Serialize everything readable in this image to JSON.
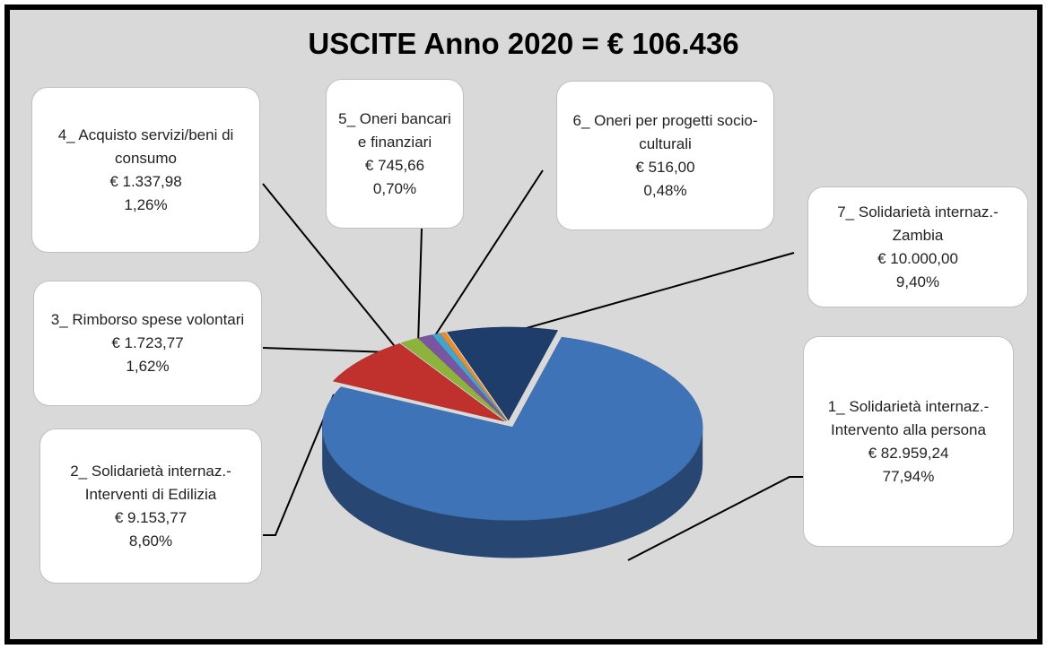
{
  "chart_data": {
    "type": "pie",
    "title": "USCITE Anno 2020 = € 106.436",
    "categories": [
      "1_ Solidarietà internaz.-Intervento alla persona",
      "2_ Solidarietà internaz.-Interventi di Edilizia",
      "3_ Rimborso spese volontari",
      "4_ Acquisto servizi/beni di consumo",
      "5_ Oneri bancari e finanziari",
      "6_ Oneri per progetti socio-culturali",
      "7_ Solidarietà internaz.-Zambia"
    ],
    "values": [
      77.94,
      8.6,
      1.62,
      1.26,
      0.7,
      0.48,
      9.4
    ],
    "value_labels": [
      "77,94%",
      "8,60%",
      "1,62%",
      "1,26%",
      "0,70%",
      "0,48%",
      "9,40%"
    ],
    "amounts": [
      82959.24,
      9153.77,
      1723.77,
      1337.98,
      745.66,
      516.0,
      10000.0
    ],
    "amount_labels": [
      "€ 82.959,24",
      "€ 9.153,77",
      "€ 1.723,77",
      "€ 1.337,98",
      "€ 745,66",
      "€ 516,00",
      "€ 10.000,00"
    ],
    "colors": [
      "#3f73b8",
      "#c0302c",
      "#8db33a",
      "#7a55a0",
      "#3fa6d0",
      "#f08a24",
      "#1f3d6b"
    ]
  }
}
